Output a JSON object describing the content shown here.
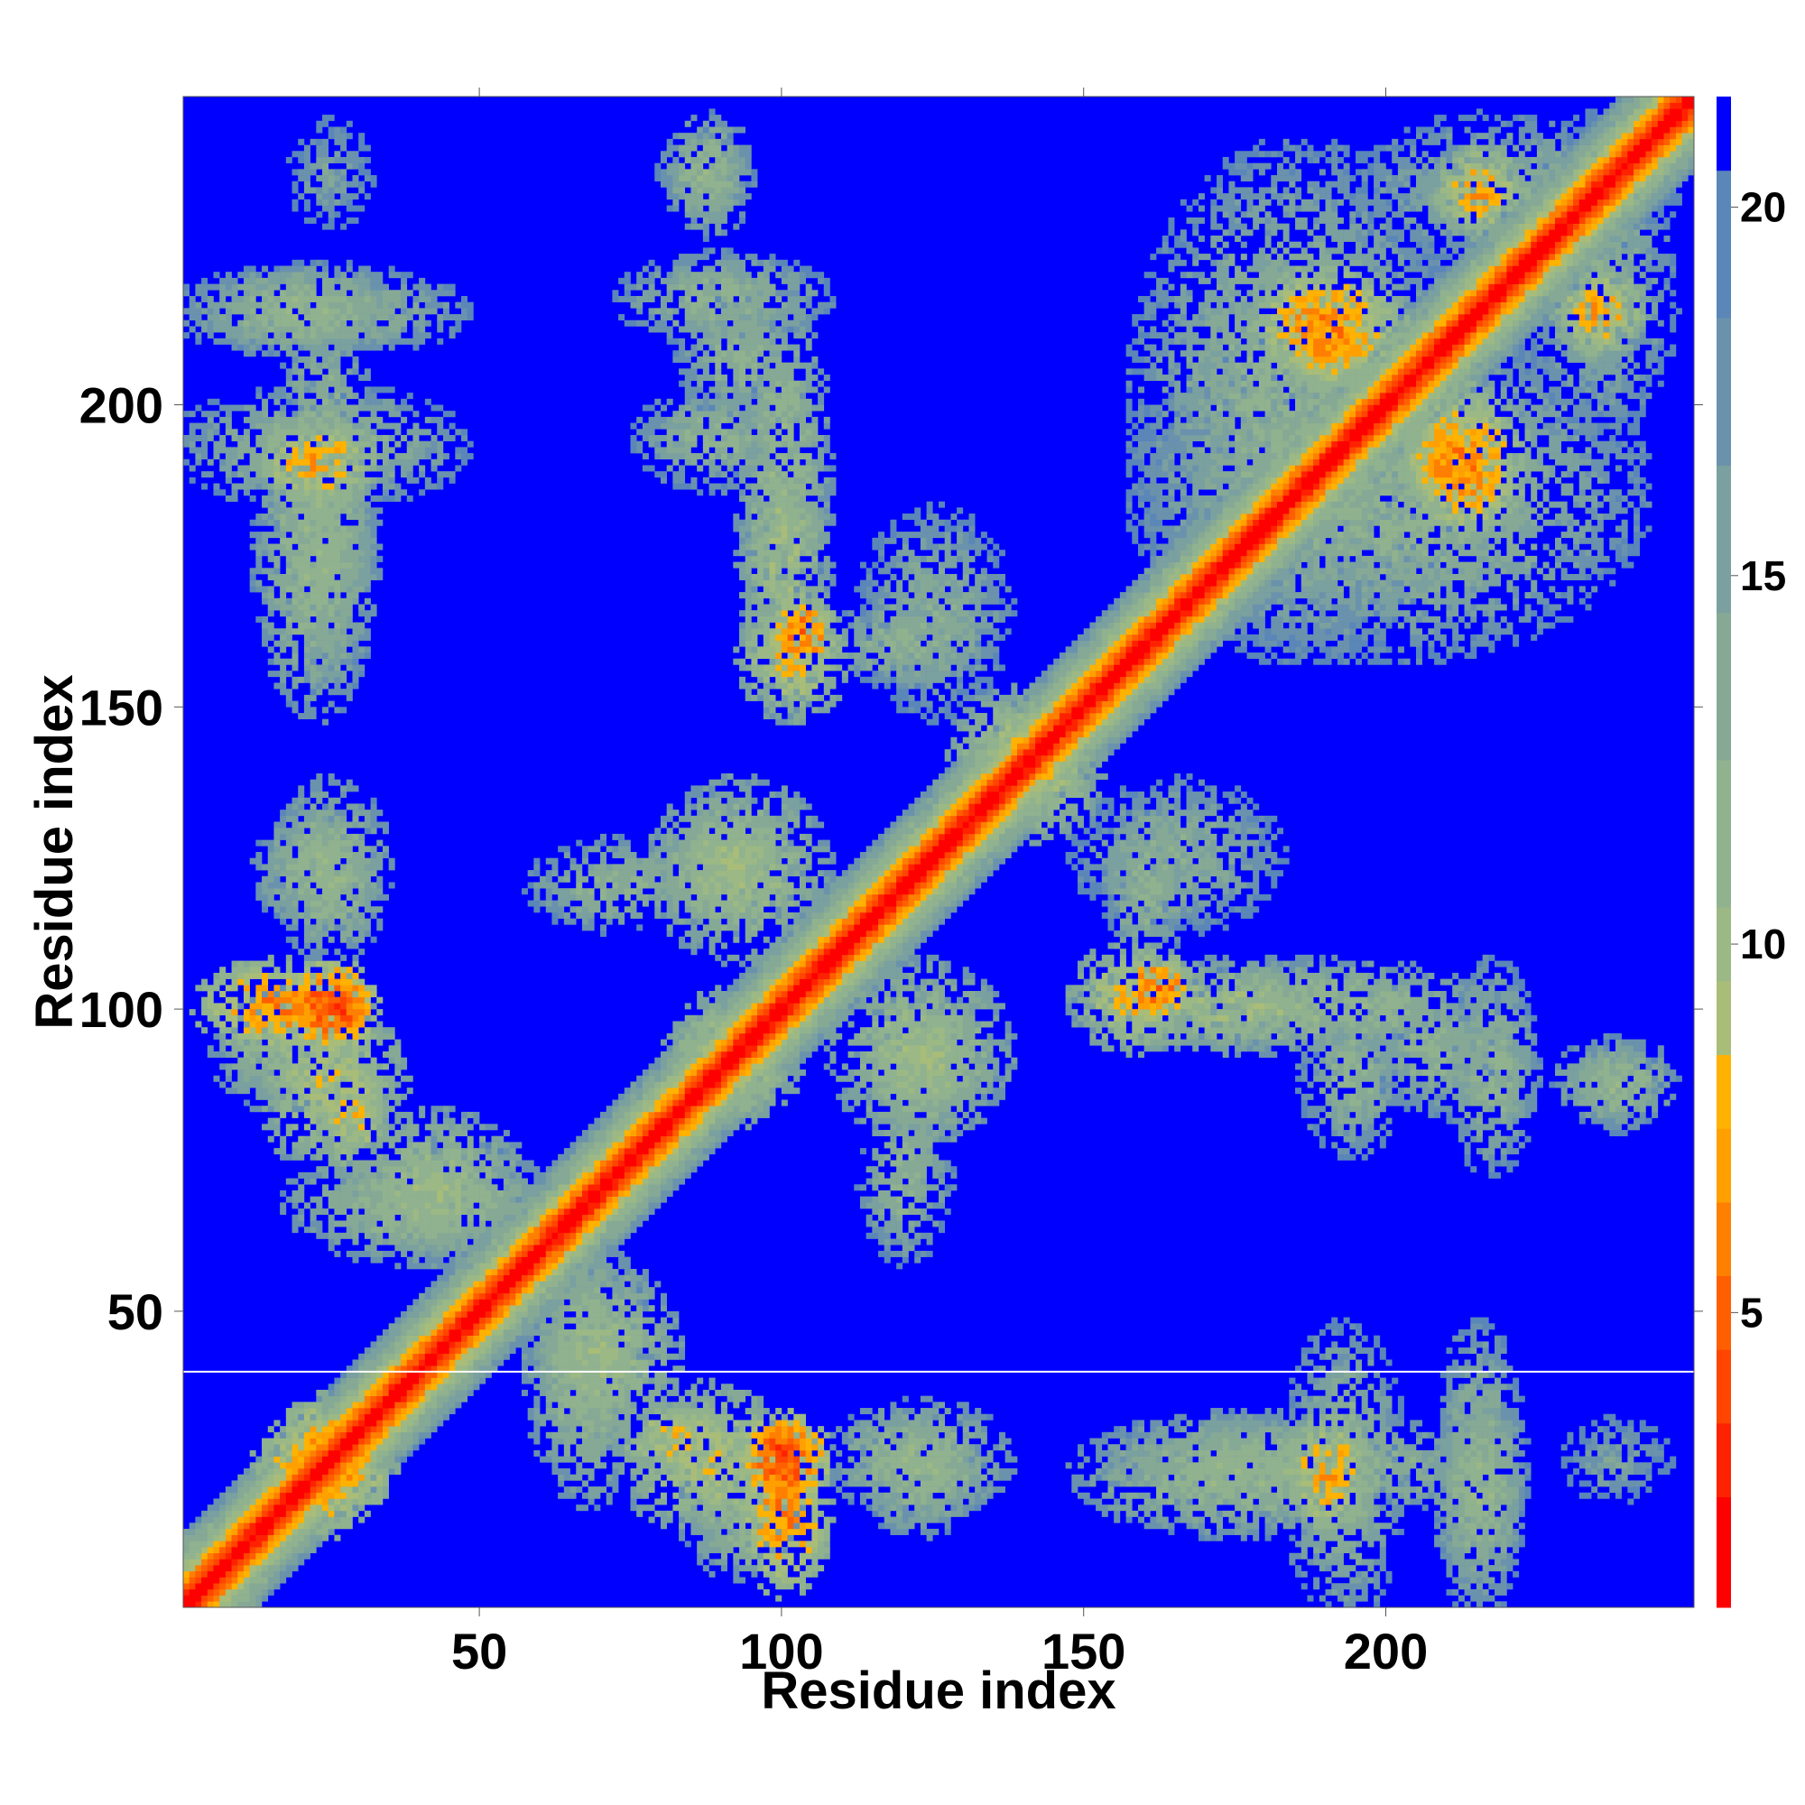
{
  "chart_data": {
    "type": "heatmap",
    "title": "",
    "xlabel": "Residue index",
    "ylabel": "Residue index",
    "n_residues": 250,
    "xlim": [
      1,
      251
    ],
    "ylim": [
      1,
      251
    ],
    "x_ticks": [
      50,
      100,
      150,
      200
    ],
    "y_ticks": [
      50,
      100,
      150,
      200
    ],
    "colorbar": {
      "range": [
        1,
        21.5
      ],
      "ticks": [
        5,
        10,
        15,
        20
      ],
      "levels": [
        {
          "upto": 2.5,
          "color": "#ff0000"
        },
        {
          "upto": 3.5,
          "color": "#ff2200"
        },
        {
          "upto": 4.5,
          "color": "#ff4500"
        },
        {
          "upto": 5.5,
          "color": "#ff5f00"
        },
        {
          "upto": 6.5,
          "color": "#ff7f00"
        },
        {
          "upto": 7.5,
          "color": "#ffa000"
        },
        {
          "upto": 8.5,
          "color": "#ffb200"
        },
        {
          "upto": 9.5,
          "color": "#a9bd78"
        },
        {
          "upto": 10.5,
          "color": "#9cb985"
        },
        {
          "upto": 12.5,
          "color": "#90b28e"
        },
        {
          "upto": 14.5,
          "color": "#86a996"
        },
        {
          "upto": 16.5,
          "color": "#7aa09f"
        },
        {
          "upto": 18.5,
          "color": "#6a92ad"
        },
        {
          "upto": 20.5,
          "color": "#5a86b8"
        },
        {
          "upto": 21.5,
          "color": "#0000ff"
        }
      ]
    },
    "diagonal": {
      "description_values": "distance ≈ 1 on diagonal, increasing to ~10 at |i-j|=6"
    },
    "contact_regions": [
      {
        "x": [
          1,
          12
        ],
        "y": [
          1,
          12
        ],
        "d": 9
      },
      {
        "x": [
          18,
          30
        ],
        "y": [
          15,
          33
        ],
        "d": 6
      },
      {
        "x": [
          20,
          30
        ],
        "y": [
          95,
          105
        ],
        "d": 4
      },
      {
        "x": [
          8,
          28
        ],
        "y": [
          85,
          100
        ],
        "d": 11
      },
      {
        "x": [
          25,
          32
        ],
        "y": [
          75,
          90
        ],
        "d": 8
      },
      {
        "x": [
          30,
          55
        ],
        "y": [
          60,
          80
        ],
        "d": 10
      },
      {
        "x": [
          18,
          32
        ],
        "y": [
          110,
          135
        ],
        "d": 11
      },
      {
        "x": [
          18,
          30
        ],
        "y": [
          155,
          215
        ],
        "d": 11
      },
      {
        "x": [
          1,
          45
        ],
        "y": [
          185,
          200
        ],
        "d": 12
      },
      {
        "x": [
          1,
          45
        ],
        "y": [
          210,
          220
        ],
        "d": 12
      },
      {
        "x": [
          20,
          30
        ],
        "y": [
          230,
          245
        ],
        "d": 15
      },
      {
        "x": [
          60,
          75
        ],
        "y": [
          20,
          60
        ],
        "d": 11
      },
      {
        "x": [
          75,
          100
        ],
        "y": [
          15,
          35
        ],
        "d": 9
      },
      {
        "x": [
          95,
          105
        ],
        "y": [
          5,
          28
        ],
        "d": 6
      },
      {
        "x": [
          83,
          98
        ],
        "y": [
          83,
          100
        ],
        "d": 9
      },
      {
        "x": [
          80,
          100
        ],
        "y": [
          115,
          132
        ],
        "d": 10
      },
      {
        "x": [
          60,
          85
        ],
        "y": [
          115,
          125
        ],
        "d": 12
      },
      {
        "x": [
          78,
          100
        ],
        "y": [
          188,
          200
        ],
        "d": 12
      },
      {
        "x": [
          95,
          105
        ],
        "y": [
          150,
          200
        ],
        "d": 10
      },
      {
        "x": [
          100,
          106
        ],
        "y": [
          158,
          165
        ],
        "d": 5
      },
      {
        "x": [
          75,
          105
        ],
        "y": [
          212,
          222
        ],
        "d": 12
      },
      {
        "x": [
          82,
          92
        ],
        "y": [
          234,
          242
        ],
        "d": 12
      },
      {
        "x": [
          110,
          135
        ],
        "y": [
          80,
          105
        ],
        "d": 10
      },
      {
        "x": [
          115,
          130
        ],
        "y": [
          15,
          30
        ],
        "d": 11
      },
      {
        "x": [
          115,
          135
        ],
        "y": [
          150,
          180
        ],
        "d": 13
      },
      {
        "x": [
          135,
          150
        ],
        "y": [
          130,
          150
        ],
        "d": 9
      },
      {
        "x": [
          150,
          165
        ],
        "y": [
          95,
          108
        ],
        "d": 8
      },
      {
        "x": [
          165,
          215
        ],
        "y": [
          95,
          105
        ],
        "d": 11
      },
      {
        "x": [
          150,
          200
        ],
        "y": [
          15,
          30
        ],
        "d": 11
      },
      {
        "x": [
          185,
          195
        ],
        "y": [
          15,
          30
        ],
        "d": 7
      },
      {
        "x": [
          210,
          220
        ],
        "y": [
          5,
          35
        ],
        "d": 11
      },
      {
        "x": [
          155,
          165
        ],
        "y": [
          110,
          130
        ],
        "d": 12
      },
      {
        "x": [
          160,
          210
        ],
        "y": [
          160,
          240
        ],
        "d": 12
      },
      {
        "x": [
          180,
          200
        ],
        "y": [
          205,
          220
        ],
        "d": 6
      },
      {
        "x": [
          205,
          215
        ],
        "y": [
          185,
          195
        ],
        "d": 6
      },
      {
        "x": [
          210,
          220
        ],
        "y": [
          230,
          240
        ],
        "d": 7
      },
      {
        "x": [
          225,
          245
        ],
        "y": [
          195,
          245
        ],
        "d": 13
      },
      {
        "x": [
          230,
          245
        ],
        "y": [
          83,
          92
        ],
        "d": 11
      },
      {
        "x": [
          200,
          215
        ],
        "y": [
          85,
          100
        ],
        "d": 12
      }
    ],
    "annotations": [
      {
        "type": "horizontal-line",
        "y": 40,
        "color": "#ffffff"
      }
    ],
    "grid": false,
    "legend": "colorbar-right"
  }
}
